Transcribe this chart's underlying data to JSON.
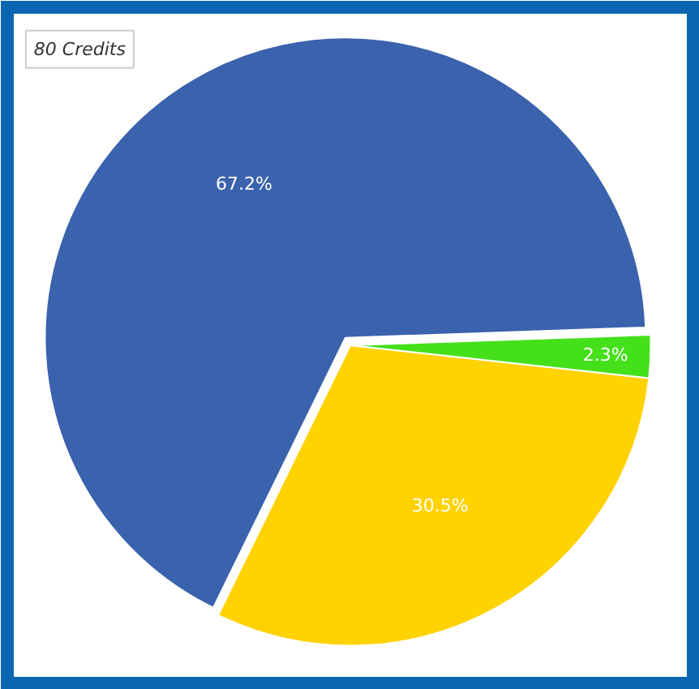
{
  "chart_data": {
    "type": "pie",
    "categories": [
      null,
      null,
      null
    ],
    "values": [
      67.2,
      30.5,
      2.3
    ],
    "colors": [
      "#3a62ad",
      "#ffd200",
      "#44e01a"
    ],
    "value_labels": [
      "67.2%",
      "30.5%",
      "2.3%"
    ],
    "annotations": [
      "80 Credits"
    ]
  }
}
